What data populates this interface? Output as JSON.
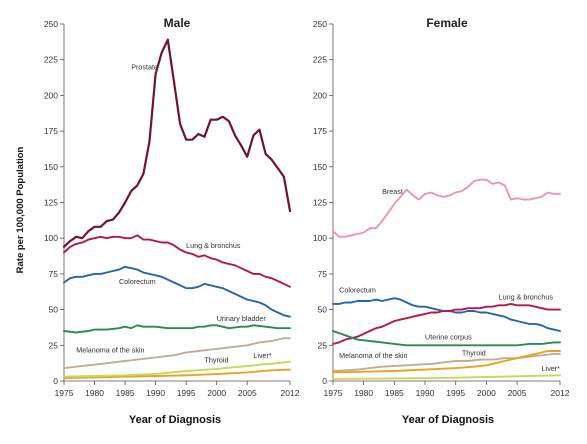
{
  "ylabel": "Rate per 100,000 Population",
  "chart_data": [
    {
      "type": "line",
      "title": "Male",
      "xlabel": "Year of Diagnosis",
      "ylabel": "Rate per 100,000 Population",
      "xlim": [
        1975,
        2012
      ],
      "ylim": [
        0,
        250
      ],
      "x_ticks": [
        "1975",
        "1980",
        "1985",
        "1990",
        "1995",
        "2000",
        "2005",
        "2012"
      ],
      "y_ticks": [
        "0",
        "25",
        "50",
        "75",
        "100",
        "125",
        "150",
        "175",
        "200",
        "225",
        "250"
      ],
      "grid": false,
      "series": [
        {
          "name": "Prostate",
          "color": "#6e1431",
          "label_at": [
            1986,
            218
          ],
          "line_width": 2.2,
          "x": [
            1975,
            1976,
            1977,
            1978,
            1979,
            1980,
            1981,
            1982,
            1983,
            1984,
            1985,
            1986,
            1987,
            1988,
            1989,
            1990,
            1991,
            1992,
            1993,
            1994,
            1995,
            1996,
            1997,
            1998,
            1999,
            2000,
            2001,
            2002,
            2003,
            2004,
            2005,
            2006,
            2007,
            2008,
            2009,
            2010,
            2011,
            2012
          ],
          "values": [
            94,
            98,
            101,
            100,
            105,
            108,
            108,
            112,
            113,
            118,
            125,
            133,
            137,
            145,
            168,
            215,
            230,
            239,
            210,
            180,
            169,
            169,
            173,
            171,
            183,
            183,
            185,
            182,
            172,
            165,
            157,
            172,
            176,
            159,
            155,
            149,
            143,
            119
          ]
        },
        {
          "name": "Lung & bronchus",
          "color": "#b5174a",
          "label_at": [
            1995,
            93
          ],
          "x": [
            1975,
            1976,
            1977,
            1978,
            1979,
            1980,
            1981,
            1982,
            1983,
            1984,
            1985,
            1986,
            1987,
            1988,
            1989,
            1990,
            1991,
            1992,
            1993,
            1994,
            1995,
            1996,
            1997,
            1998,
            1999,
            2000,
            2001,
            2002,
            2003,
            2005,
            2006,
            2007,
            2008,
            2009,
            2010,
            2011,
            2012
          ],
          "values": [
            90,
            94,
            96,
            97,
            99,
            100,
            101,
            100,
            101,
            101,
            100,
            100,
            102,
            99,
            99,
            98,
            97,
            97,
            95,
            92,
            90,
            89,
            87,
            88,
            86,
            85,
            83,
            82,
            81,
            77,
            75,
            75,
            73,
            72,
            70,
            68,
            66
          ]
        },
        {
          "name": "Colorectum",
          "color": "#2466a8",
          "label_at": [
            1984,
            68
          ],
          "x": [
            1975,
            1976,
            1977,
            1978,
            1979,
            1980,
            1981,
            1982,
            1983,
            1984,
            1985,
            1986,
            1987,
            1988,
            1989,
            1990,
            1991,
            1992,
            1993,
            1994,
            1995,
            1996,
            1997,
            1998,
            1999,
            2000,
            2001,
            2002,
            2003,
            2004,
            2005,
            2006,
            2007,
            2008,
            2009,
            2010,
            2011,
            2012
          ],
          "values": [
            69,
            72,
            73,
            73,
            74,
            75,
            75,
            76,
            77,
            78,
            80,
            79,
            78,
            76,
            75,
            74,
            73,
            71,
            69,
            67,
            65,
            65,
            66,
            68,
            67,
            66,
            65,
            63,
            61,
            59,
            57,
            56,
            55,
            53,
            50,
            48,
            46,
            45
          ]
        },
        {
          "name": "Urinary bladder",
          "color": "#2a8a55",
          "label_at": [
            2000,
            42
          ],
          "x": [
            1975,
            1977,
            1979,
            1980,
            1982,
            1984,
            1985,
            1986,
            1987,
            1988,
            1990,
            1992,
            1994,
            1995,
            1996,
            1997,
            1998,
            1999,
            2000,
            2002,
            2004,
            2005,
            2006,
            2008,
            2010,
            2012
          ],
          "values": [
            35,
            34,
            35,
            36,
            36,
            37,
            38,
            37,
            39,
            38,
            38,
            37,
            37,
            37,
            37,
            38,
            38,
            39,
            39,
            37,
            38,
            38,
            39,
            38,
            37,
            37
          ]
        },
        {
          "name": "Melanoma of the skin",
          "color": "#c3ab96",
          "label_at": [
            1977,
            20
          ],
          "x": [
            1975,
            1977,
            1979,
            1981,
            1983,
            1985,
            1987,
            1989,
            1991,
            1993,
            1995,
            1997,
            1999,
            2001,
            2003,
            2005,
            2007,
            2009,
            2011,
            2012
          ],
          "values": [
            9,
            10,
            11,
            12,
            13,
            14,
            15,
            16,
            17,
            18,
            20,
            21,
            22,
            23,
            24,
            25,
            27,
            28,
            30,
            30
          ]
        },
        {
          "name": "Thyroid",
          "color": "#e8a41e",
          "label_at": [
            1998,
            13
          ],
          "x": [
            1975,
            1980,
            1985,
            1990,
            1995,
            2000,
            2003,
            2005,
            2007,
            2009,
            2012
          ],
          "values": [
            2,
            2.5,
            3,
            3.5,
            4,
            4.8,
            5.5,
            6,
            6.8,
            7.5,
            8
          ]
        },
        {
          "name": "Liver*",
          "color": "#c9d75a",
          "label_at": [
            2006,
            16
          ],
          "label_underline": true,
          "x": [
            1975,
            1980,
            1985,
            1990,
            1995,
            2000,
            2005,
            2010,
            2012
          ],
          "values": [
            3,
            3.5,
            4,
            5,
            7,
            8.5,
            10.5,
            12.5,
            13.5
          ]
        }
      ]
    },
    {
      "type": "line",
      "title": "Female",
      "xlabel": "Year of Diagnosis",
      "ylabel": "",
      "xlim": [
        1975,
        2012
      ],
      "ylim": [
        0,
        250
      ],
      "x_ticks": [
        "1975",
        "1980",
        "1985",
        "1990",
        "1995",
        "2000",
        "2005",
        "2012"
      ],
      "y_ticks": [
        "0",
        "25",
        "50",
        "75",
        "100",
        "125",
        "150",
        "175",
        "200",
        "225",
        "250"
      ],
      "grid": false,
      "series": [
        {
          "name": "Breast",
          "color": "#ec93bd",
          "label_at": [
            1983,
            131
          ],
          "x": [
            1975,
            1976,
            1977,
            1978,
            1979,
            1980,
            1981,
            1982,
            1983,
            1984,
            1985,
            1986,
            1987,
            1988,
            1989,
            1990,
            1991,
            1992,
            1993,
            1994,
            1995,
            1996,
            1997,
            1998,
            1999,
            2000,
            2001,
            2002,
            2003,
            2004,
            2005,
            2006,
            2007,
            2008,
            2009,
            2010,
            2011,
            2012
          ],
          "values": [
            105,
            101,
            101,
            102,
            103,
            104,
            107,
            107,
            112,
            118,
            124,
            129,
            134,
            130,
            127,
            131,
            132,
            130,
            129,
            130,
            132,
            133,
            136,
            140,
            141,
            141,
            138,
            139,
            137,
            127,
            128,
            127,
            127,
            128,
            129,
            132,
            131,
            131
          ]
        },
        {
          "name": "Colorectum",
          "color": "#2466a8",
          "label_at": [
            1976,
            62
          ],
          "x": [
            1975,
            1976,
            1977,
            1978,
            1979,
            1980,
            1981,
            1982,
            1983,
            1984,
            1985,
            1986,
            1987,
            1988,
            1989,
            1990,
            1991,
            1992,
            1993,
            1994,
            1995,
            1996,
            1997,
            1998,
            1999,
            2000,
            2001,
            2002,
            2003,
            2004,
            2005,
            2006,
            2007,
            2008,
            2009,
            2010,
            2011,
            2012
          ],
          "values": [
            54,
            54,
            55,
            55,
            56,
            56,
            56,
            57,
            56,
            57,
            58,
            57,
            55,
            53,
            52,
            52,
            51,
            50,
            49,
            49,
            48,
            48,
            49,
            49,
            48,
            48,
            47,
            46,
            45,
            43,
            42,
            41,
            40,
            40,
            39,
            37,
            36,
            35
          ]
        },
        {
          "name": "Lung & bronchus",
          "color": "#b5174a",
          "label_at": [
            2002,
            57
          ],
          "x": [
            1975,
            1976,
            1977,
            1978,
            1979,
            1980,
            1981,
            1982,
            1983,
            1984,
            1985,
            1986,
            1987,
            1988,
            1989,
            1990,
            1991,
            1992,
            1993,
            1994,
            1995,
            1996,
            1997,
            1998,
            1999,
            2000,
            2001,
            2002,
            2003,
            2004,
            2005,
            2006,
            2007,
            2008,
            2009,
            2010,
            2011,
            2012
          ],
          "values": [
            26,
            27,
            29,
            30,
            31,
            33,
            35,
            37,
            38,
            40,
            42,
            43,
            44,
            45,
            46,
            47,
            48,
            48,
            49,
            49,
            50,
            50,
            51,
            51,
            51,
            52,
            52,
            53,
            53,
            54,
            53,
            53,
            53,
            52,
            51,
            50,
            50,
            50
          ]
        },
        {
          "name": "Uterine corpus",
          "color": "#2a8a55",
          "label_at": [
            1990,
            29
          ],
          "x": [
            1975,
            1977,
            1979,
            1981,
            1983,
            1985,
            1987,
            1989,
            1991,
            1993,
            1995,
            1997,
            1999,
            2001,
            2003,
            2005,
            2007,
            2009,
            2011,
            2012
          ],
          "values": [
            35,
            32,
            29,
            28,
            27,
            26,
            25,
            25,
            25,
            25,
            25,
            25,
            25,
            25,
            25,
            25,
            26,
            26,
            27,
            27
          ]
        },
        {
          "name": "Melanoma of the skin",
          "color": "#c3ab96",
          "label_at": [
            1976,
            16
          ],
          "x": [
            1975,
            1977,
            1979,
            1981,
            1983,
            1985,
            1987,
            1989,
            1991,
            1993,
            1995,
            1997,
            1999,
            2001,
            2003,
            2005,
            2007,
            2009,
            2011,
            2012
          ],
          "values": [
            7,
            7.5,
            8,
            9,
            10,
            10.5,
            11,
            11.5,
            12,
            13,
            14,
            14,
            15,
            15,
            16,
            16,
            17,
            18,
            19,
            19
          ]
        },
        {
          "name": "Thyroid",
          "color": "#e8a41e",
          "label_at": [
            1996,
            18
          ],
          "x": [
            1975,
            1980,
            1985,
            1990,
            1995,
            1998,
            2000,
            2002,
            2004,
            2006,
            2008,
            2010,
            2012
          ],
          "values": [
            6,
            6.5,
            7,
            8,
            9,
            10,
            11,
            13,
            15,
            17,
            19,
            21,
            21
          ]
        },
        {
          "name": "Liver*",
          "color": "#c9d75a",
          "label_at": [
            2009,
            7
          ],
          "x": [
            1975,
            1980,
            1985,
            1990,
            1995,
            2000,
            2005,
            2010,
            2012
          ],
          "values": [
            1.5,
            1.6,
            1.8,
            2,
            2.3,
            2.8,
            3.3,
            3.8,
            4
          ]
        }
      ]
    }
  ]
}
